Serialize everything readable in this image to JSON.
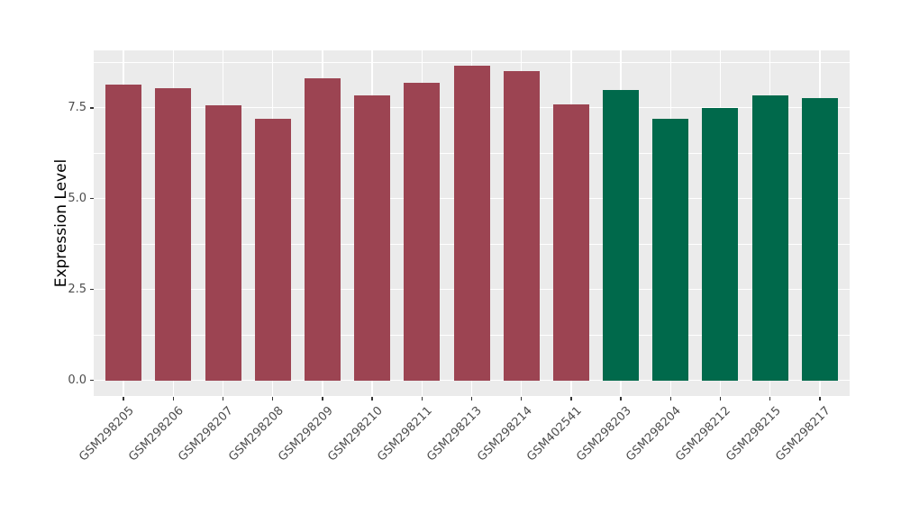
{
  "chart_data": {
    "type": "bar",
    "title": "",
    "xlabel": "",
    "ylabel": "Expression Level",
    "categories": [
      "GSM298205",
      "GSM298206",
      "GSM298207",
      "GSM298208",
      "GSM298209",
      "GSM298210",
      "GSM298211",
      "GSM298213",
      "GSM298214",
      "GSM402541",
      "GSM298203",
      "GSM298204",
      "GSM298212",
      "GSM298215",
      "GSM298217"
    ],
    "values": [
      8.13,
      8.03,
      7.57,
      7.2,
      8.31,
      7.84,
      8.2,
      8.65,
      8.5,
      7.59,
      7.99,
      7.2,
      7.49,
      7.84,
      7.76
    ],
    "bar_groups": [
      "maroon",
      "maroon",
      "maroon",
      "maroon",
      "maroon",
      "maroon",
      "maroon",
      "maroon",
      "maroon",
      "maroon",
      "green",
      "green",
      "green",
      "green",
      "green"
    ],
    "group_colors": {
      "maroon": "#9C4452",
      "green": "#00694B"
    },
    "ylim": [
      -0.43,
      9.08
    ],
    "yticks": [
      0.0,
      2.5,
      5.0,
      7.5
    ],
    "ytick_labels": [
      "0.0",
      "2.5",
      "5.0",
      "7.5"
    ],
    "yticks_minor": [
      1.25,
      3.75,
      6.25,
      8.75
    ],
    "grid": true,
    "legend_position": "none",
    "panel_background": "#EBEBEB",
    "grid_color": "#FFFFFF",
    "tick_mark_color": "#333333",
    "tick_label_color": "#4D4D4D"
  }
}
